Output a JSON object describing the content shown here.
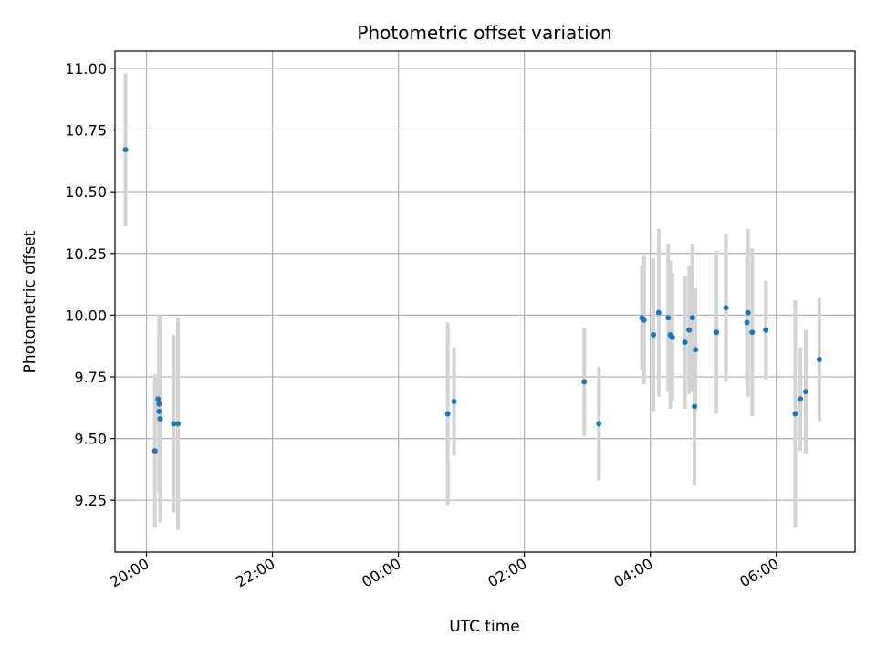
{
  "chart_data": {
    "type": "scatter",
    "title": "Photometric offset variation",
    "xlabel": "UTC time",
    "ylabel": "Photometric offset",
    "grid": true,
    "x_ticks": [
      "20:00",
      "22:00",
      "00:00",
      "02:00",
      "04:00",
      "06:00"
    ],
    "y_ticks": [
      "9.25",
      "9.50",
      "9.75",
      "10.00",
      "10.25",
      "10.50",
      "10.75",
      "11.00"
    ],
    "xlim": [
      "19:30",
      "07:15"
    ],
    "ylim": [
      9.04,
      11.07
    ],
    "colors": {
      "point": "#1f77b4",
      "errorbar": "#d3d3d3",
      "grid": "#b0b0b0"
    },
    "points": [
      {
        "t": "19:40",
        "y": 10.67,
        "err": 0.31
      },
      {
        "t": "20:08",
        "y": 9.45,
        "err": 0.31
      },
      {
        "t": "20:11",
        "y": 9.66,
        "err": 0.1
      },
      {
        "t": "20:12",
        "y": 9.64,
        "err": 0.36
      },
      {
        "t": "20:12",
        "y": 9.61,
        "err": 0.3
      },
      {
        "t": "20:13",
        "y": 9.58,
        "err": 0.42
      },
      {
        "t": "20:26",
        "y": 9.56,
        "err": 0.36
      },
      {
        "t": "20:30",
        "y": 9.56,
        "err": 0.43
      },
      {
        "t": "00:47",
        "y": 9.6,
        "err": 0.37
      },
      {
        "t": "00:53",
        "y": 9.65,
        "err": 0.22
      },
      {
        "t": "02:57",
        "y": 9.73,
        "err": 0.22
      },
      {
        "t": "03:11",
        "y": 9.56,
        "err": 0.23
      },
      {
        "t": "03:52",
        "y": 9.99,
        "err": 0.21
      },
      {
        "t": "03:54",
        "y": 9.98,
        "err": 0.26
      },
      {
        "t": "04:03",
        "y": 9.92,
        "err": 0.31
      },
      {
        "t": "04:08",
        "y": 10.01,
        "err": 0.34
      },
      {
        "t": "04:17",
        "y": 9.99,
        "err": 0.3
      },
      {
        "t": "04:19",
        "y": 9.92,
        "err": 0.3
      },
      {
        "t": "04:21",
        "y": 9.91,
        "err": 0.26
      },
      {
        "t": "04:33",
        "y": 9.89,
        "err": 0.27
      },
      {
        "t": "04:37",
        "y": 9.94,
        "err": 0.26
      },
      {
        "t": "04:40",
        "y": 9.99,
        "err": 0.3
      },
      {
        "t": "04:42",
        "y": 9.63,
        "err": 0.32
      },
      {
        "t": "04:43",
        "y": 9.86,
        "err": 0.25
      },
      {
        "t": "05:03",
        "y": 9.93,
        "err": 0.33
      },
      {
        "t": "05:12",
        "y": 10.03,
        "err": 0.3
      },
      {
        "t": "05:32",
        "y": 9.97,
        "err": 0.26
      },
      {
        "t": "05:33",
        "y": 10.01,
        "err": 0.34
      },
      {
        "t": "05:37",
        "y": 9.93,
        "err": 0.34
      },
      {
        "t": "05:50",
        "y": 9.94,
        "err": 0.2
      },
      {
        "t": "06:18",
        "y": 9.6,
        "err": 0.46
      },
      {
        "t": "06:23",
        "y": 9.66,
        "err": 0.21
      },
      {
        "t": "06:28",
        "y": 9.69,
        "err": 0.25
      },
      {
        "t": "06:41",
        "y": 9.82,
        "err": 0.25
      }
    ]
  }
}
